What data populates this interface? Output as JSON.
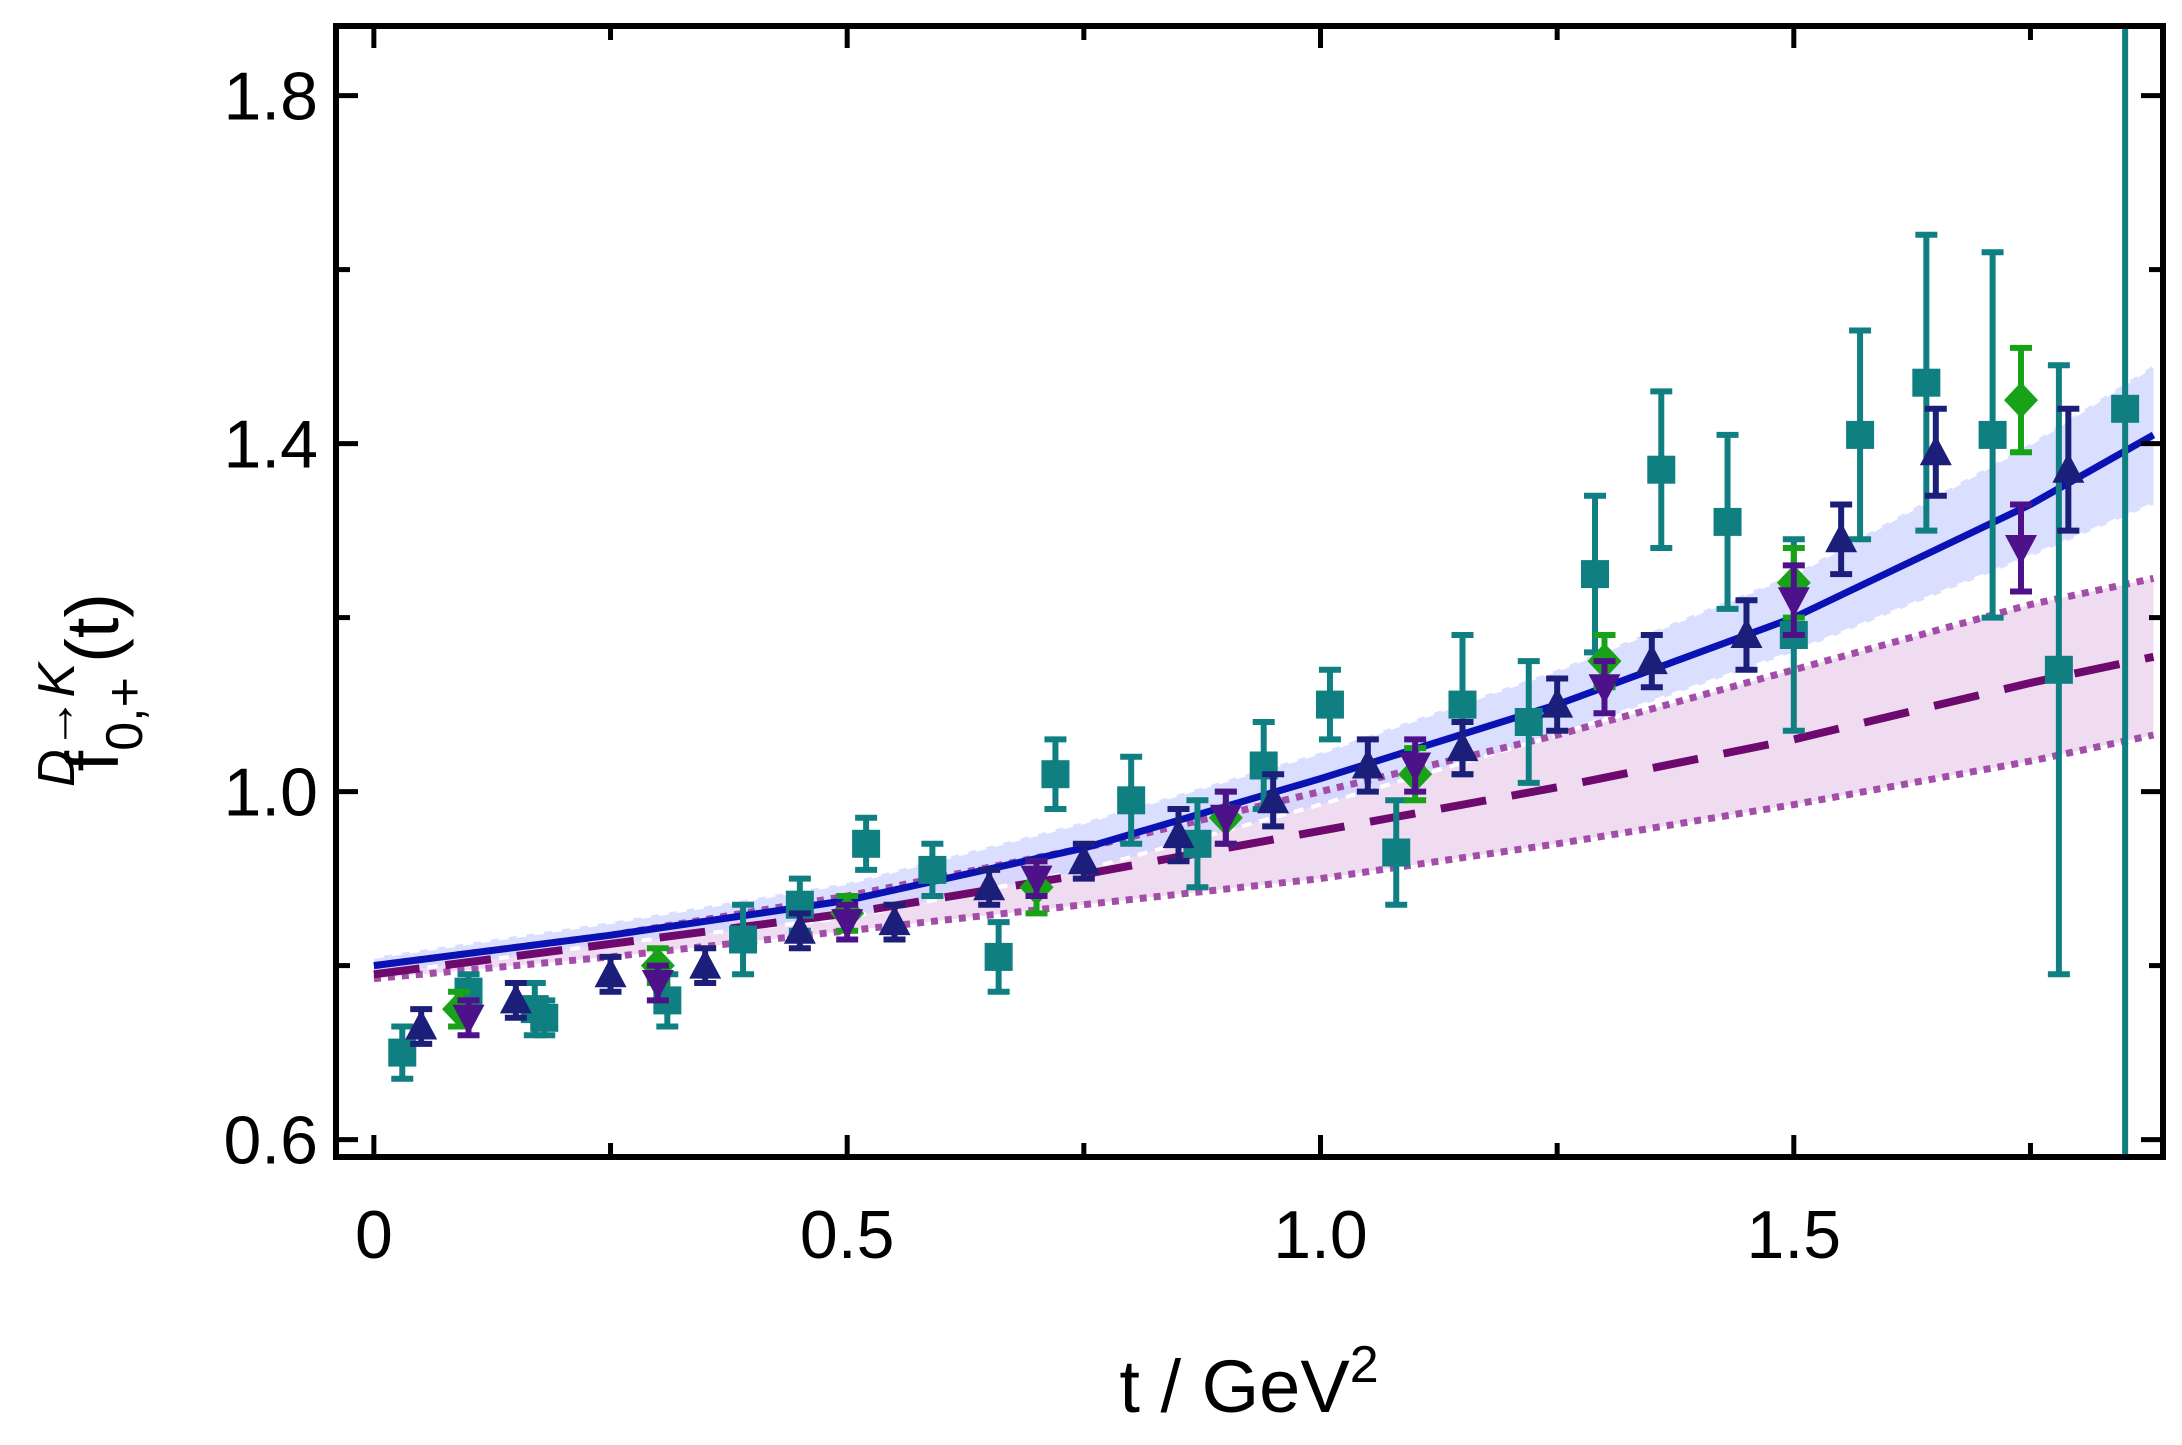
{
  "chart_data": {
    "type": "scatter",
    "title": "",
    "xlabel": {
      "main": "t / GeV",
      "sup": "2"
    },
    "ylabel": {
      "main": "f",
      "sup": "D→K",
      "sub": "0,+",
      "tail": "(t)"
    },
    "xlim": [
      -0.04,
      1.89
    ],
    "ylim": [
      0.58,
      1.88
    ],
    "xticks": [
      0,
      0.5,
      1.0,
      1.5
    ],
    "xtick_labels": [
      "0",
      "0.5",
      "1.0",
      "1.5"
    ],
    "yticks": [
      0.6,
      1.0,
      1.4,
      1.8
    ],
    "ytick_labels": [
      "0.6",
      "1.0",
      "1.4",
      "1.8"
    ],
    "colors": {
      "teal": "#0f7f82",
      "green": "#18a218",
      "navy": "#1c1f7a",
      "purple": "#4d1289",
      "fit_blue": "#0a12b4",
      "band_blue": "#cfd4ff",
      "dash_purple": "#6e0a6e",
      "dot_purple": "#a24ea8",
      "band_purple": "#ecd6ee"
    },
    "curves": [
      {
        "name": "fit-blue-solid",
        "x": [
          0,
          0.25,
          0.5,
          0.75,
          1.0,
          1.25,
          1.5,
          1.75,
          1.88
        ],
        "y": [
          0.8,
          0.835,
          0.875,
          0.935,
          1.015,
          1.1,
          1.2,
          1.33,
          1.41
        ]
      },
      {
        "name": "fit-blue-upper",
        "x": [
          0,
          0.25,
          0.5,
          0.75,
          1.0,
          1.25,
          1.5,
          1.75,
          1.88
        ],
        "y": [
          0.81,
          0.85,
          0.895,
          0.965,
          1.045,
          1.14,
          1.25,
          1.4,
          1.49
        ]
      },
      {
        "name": "fit-blue-lower",
        "x": [
          0,
          0.25,
          0.5,
          0.75,
          1.0,
          1.25,
          1.5,
          1.75,
          1.88
        ],
        "y": [
          0.79,
          0.825,
          0.855,
          0.91,
          0.985,
          1.065,
          1.16,
          1.27,
          1.33
        ]
      },
      {
        "name": "fit-purple-dashed",
        "x": [
          0,
          0.25,
          0.5,
          0.75,
          1.0,
          1.25,
          1.5,
          1.75,
          1.88
        ],
        "y": [
          0.79,
          0.825,
          0.86,
          0.905,
          0.955,
          1.005,
          1.06,
          1.125,
          1.155
        ]
      },
      {
        "name": "fit-purple-upper-dotted",
        "x": [
          0,
          0.25,
          0.5,
          0.75,
          1.0,
          1.25,
          1.5,
          1.75,
          1.88
        ],
        "y": [
          0.8,
          0.835,
          0.88,
          0.935,
          1.0,
          1.065,
          1.14,
          1.215,
          1.245
        ]
      },
      {
        "name": "fit-purple-lower-dotted",
        "x": [
          0,
          0.25,
          0.5,
          0.75,
          1.0,
          1.25,
          1.5,
          1.75,
          1.88
        ],
        "y": [
          0.785,
          0.81,
          0.84,
          0.87,
          0.9,
          0.94,
          0.985,
          1.035,
          1.065
        ]
      }
    ],
    "series": [
      {
        "name": "teal-squares",
        "marker": "square",
        "color": "teal",
        "points": [
          {
            "x": 0.03,
            "y": 0.7,
            "e": 0.03
          },
          {
            "x": 0.1,
            "y": 0.77,
            "e": 0.02
          },
          {
            "x": 0.17,
            "y": 0.75,
            "e": 0.03
          },
          {
            "x": 0.18,
            "y": 0.74,
            "e": 0.02
          },
          {
            "x": 0.31,
            "y": 0.76,
            "e": 0.03
          },
          {
            "x": 0.39,
            "y": 0.83,
            "e": 0.04
          },
          {
            "x": 0.45,
            "y": 0.87,
            "e": 0.03
          },
          {
            "x": 0.52,
            "y": 0.94,
            "e": 0.03
          },
          {
            "x": 0.59,
            "y": 0.91,
            "e": 0.03
          },
          {
            "x": 0.66,
            "y": 0.81,
            "e": 0.04
          },
          {
            "x": 0.72,
            "y": 1.02,
            "e": 0.04
          },
          {
            "x": 0.8,
            "y": 0.99,
            "e": 0.05
          },
          {
            "x": 0.87,
            "y": 0.94,
            "e": 0.05
          },
          {
            "x": 0.94,
            "y": 1.03,
            "e": 0.05
          },
          {
            "x": 1.01,
            "y": 1.1,
            "e": 0.04
          },
          {
            "x": 1.08,
            "y": 0.93,
            "e": 0.06
          },
          {
            "x": 1.15,
            "y": 1.1,
            "e": 0.08
          },
          {
            "x": 1.22,
            "y": 1.08,
            "e": 0.07
          },
          {
            "x": 1.29,
            "y": 1.25,
            "e": 0.09
          },
          {
            "x": 1.36,
            "y": 1.37,
            "e": 0.09
          },
          {
            "x": 1.43,
            "y": 1.31,
            "e": 0.1
          },
          {
            "x": 1.5,
            "y": 1.18,
            "e": 0.11
          },
          {
            "x": 1.57,
            "y": 1.41,
            "e": 0.12
          },
          {
            "x": 1.64,
            "y": 1.47,
            "e": 0.17
          },
          {
            "x": 1.71,
            "y": 1.41,
            "e": 0.21
          },
          {
            "x": 1.78,
            "y": 1.14,
            "e": 0.35
          },
          {
            "x": 1.85,
            "y": 1.44,
            "e": 1.0
          }
        ]
      },
      {
        "name": "green-diamonds",
        "marker": "diamond",
        "color": "green",
        "points": [
          {
            "x": 0.09,
            "y": 0.75,
            "e": 0.02
          },
          {
            "x": 0.3,
            "y": 0.8,
            "e": 0.02
          },
          {
            "x": 0.5,
            "y": 0.86,
            "e": 0.02
          },
          {
            "x": 0.7,
            "y": 0.89,
            "e": 0.03
          },
          {
            "x": 0.9,
            "y": 0.97,
            "e": 0.03
          },
          {
            "x": 1.1,
            "y": 1.02,
            "e": 0.03
          },
          {
            "x": 1.3,
            "y": 1.15,
            "e": 0.03
          },
          {
            "x": 1.5,
            "y": 1.24,
            "e": 0.04
          },
          {
            "x": 1.74,
            "y": 1.45,
            "e": 0.06
          }
        ]
      },
      {
        "name": "navy-triangles-up",
        "marker": "triangle-up",
        "color": "navy",
        "points": [
          {
            "x": 0.05,
            "y": 0.73,
            "e": 0.02
          },
          {
            "x": 0.15,
            "y": 0.76,
            "e": 0.02
          },
          {
            "x": 0.25,
            "y": 0.79,
            "e": 0.02
          },
          {
            "x": 0.35,
            "y": 0.8,
            "e": 0.02
          },
          {
            "x": 0.45,
            "y": 0.84,
            "e": 0.02
          },
          {
            "x": 0.55,
            "y": 0.85,
            "e": 0.02
          },
          {
            "x": 0.65,
            "y": 0.89,
            "e": 0.02
          },
          {
            "x": 0.75,
            "y": 0.92,
            "e": 0.02
          },
          {
            "x": 0.85,
            "y": 0.95,
            "e": 0.03
          },
          {
            "x": 0.95,
            "y": 0.99,
            "e": 0.03
          },
          {
            "x": 1.05,
            "y": 1.03,
            "e": 0.03
          },
          {
            "x": 1.15,
            "y": 1.05,
            "e": 0.03
          },
          {
            "x": 1.25,
            "y": 1.1,
            "e": 0.03
          },
          {
            "x": 1.35,
            "y": 1.15,
            "e": 0.03
          },
          {
            "x": 1.45,
            "y": 1.18,
            "e": 0.04
          },
          {
            "x": 1.55,
            "y": 1.29,
            "e": 0.04
          },
          {
            "x": 1.65,
            "y": 1.39,
            "e": 0.05
          },
          {
            "x": 1.79,
            "y": 1.37,
            "e": 0.07
          }
        ]
      },
      {
        "name": "purple-triangles-down",
        "marker": "triangle-down",
        "color": "purple",
        "points": [
          {
            "x": 0.1,
            "y": 0.74,
            "e": 0.02
          },
          {
            "x": 0.3,
            "y": 0.78,
            "e": 0.02
          },
          {
            "x": 0.5,
            "y": 0.85,
            "e": 0.02
          },
          {
            "x": 0.7,
            "y": 0.9,
            "e": 0.02
          },
          {
            "x": 0.9,
            "y": 0.97,
            "e": 0.03
          },
          {
            "x": 1.1,
            "y": 1.03,
            "e": 0.03
          },
          {
            "x": 1.3,
            "y": 1.12,
            "e": 0.03
          },
          {
            "x": 1.5,
            "y": 1.22,
            "e": 0.04
          },
          {
            "x": 1.74,
            "y": 1.28,
            "e": 0.05
          }
        ]
      }
    ]
  }
}
